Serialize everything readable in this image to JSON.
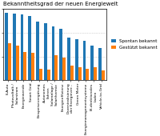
{
  "chart_data": {
    "type": "bar",
    "title": "Bekanntheitsgrad der neuen Energiewelt",
    "categories": [
      "E-Auto",
      "Photovoltaik /\nSolarstrom",
      "Energiewende",
      "Smart Grid",
      "Einspeisevergütung",
      "Autonomes\nFahren",
      "Solaranlage /\nSolarthermie",
      "Energieeffizienz",
      "Dezentralisierung\nder Energiever...",
      "Green Meter",
      "Energiemanagementsysteme",
      "Bi-direktionales\nLaden",
      "Vehicle-to-Grid"
    ],
    "series": [
      {
        "name": "Spontan bekannt",
        "values": [
          95,
          93,
          92,
          90,
          82,
          80,
          75,
          72,
          60,
          58,
          55,
          48,
          45
        ]
      },
      {
        "name": "Gestützt bekannt",
        "values": [
          52,
          48,
          40,
          38,
          16,
          15,
          35,
          32,
          20,
          18,
          16,
          18,
          14
        ]
      }
    ],
    "ylim": [
      0,
      100
    ],
    "yticks": [
      33,
      66,
      100
    ],
    "grid": true,
    "legend": "center left",
    "tick_labels": "x"
  }
}
